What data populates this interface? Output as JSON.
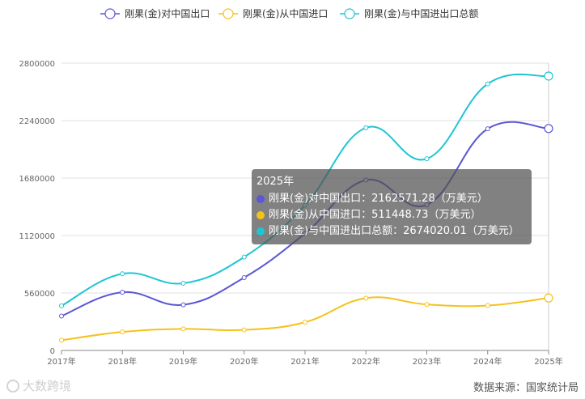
{
  "chart_data": {
    "type": "line",
    "smooth": true,
    "categories": [
      "2017年",
      "2018年",
      "2019年",
      "2020年",
      "2021年",
      "2022年",
      "2023年",
      "2024年",
      "2025年"
    ],
    "series": [
      {
        "name": "刚果(金)对中国出口",
        "color": "#5b57d6",
        "values": [
          335000,
          567000,
          445000,
          710000,
          1140000,
          1660000,
          1420000,
          2160000,
          2162571.28
        ]
      },
      {
        "name": "刚果(金)从中国进口",
        "color": "#f4c21d",
        "values": [
          100000,
          180000,
          210000,
          200000,
          275000,
          510000,
          448000,
          438000,
          511448.73
        ]
      },
      {
        "name": "刚果(金)与中国进出口总额",
        "color": "#1fc5d3",
        "values": [
          435000,
          747000,
          655000,
          910000,
          1415000,
          2170000,
          1868000,
          2598000,
          2674020.01
        ]
      }
    ],
    "ylim": [
      0,
      2800000
    ],
    "yticks": [
      0,
      560000,
      1120000,
      1680000,
      2240000,
      2800000
    ],
    "grid": true,
    "legend": "top",
    "title": "",
    "xlabel": "",
    "ylabel": ""
  },
  "tooltip": {
    "title": "2025年",
    "rows": [
      {
        "label": "刚果(金)对中国出口：2162571.28（万美元）",
        "color": "#5b57d6"
      },
      {
        "label": "刚果(金)从中国进口：511448.73（万美元）",
        "color": "#f4c21d"
      },
      {
        "label": "刚果(金)与中国进出口总额：2674020.01（万美元）",
        "color": "#1fc5d3"
      }
    ]
  },
  "source": "数据来源：国家统计局",
  "watermark": "大数跨境"
}
